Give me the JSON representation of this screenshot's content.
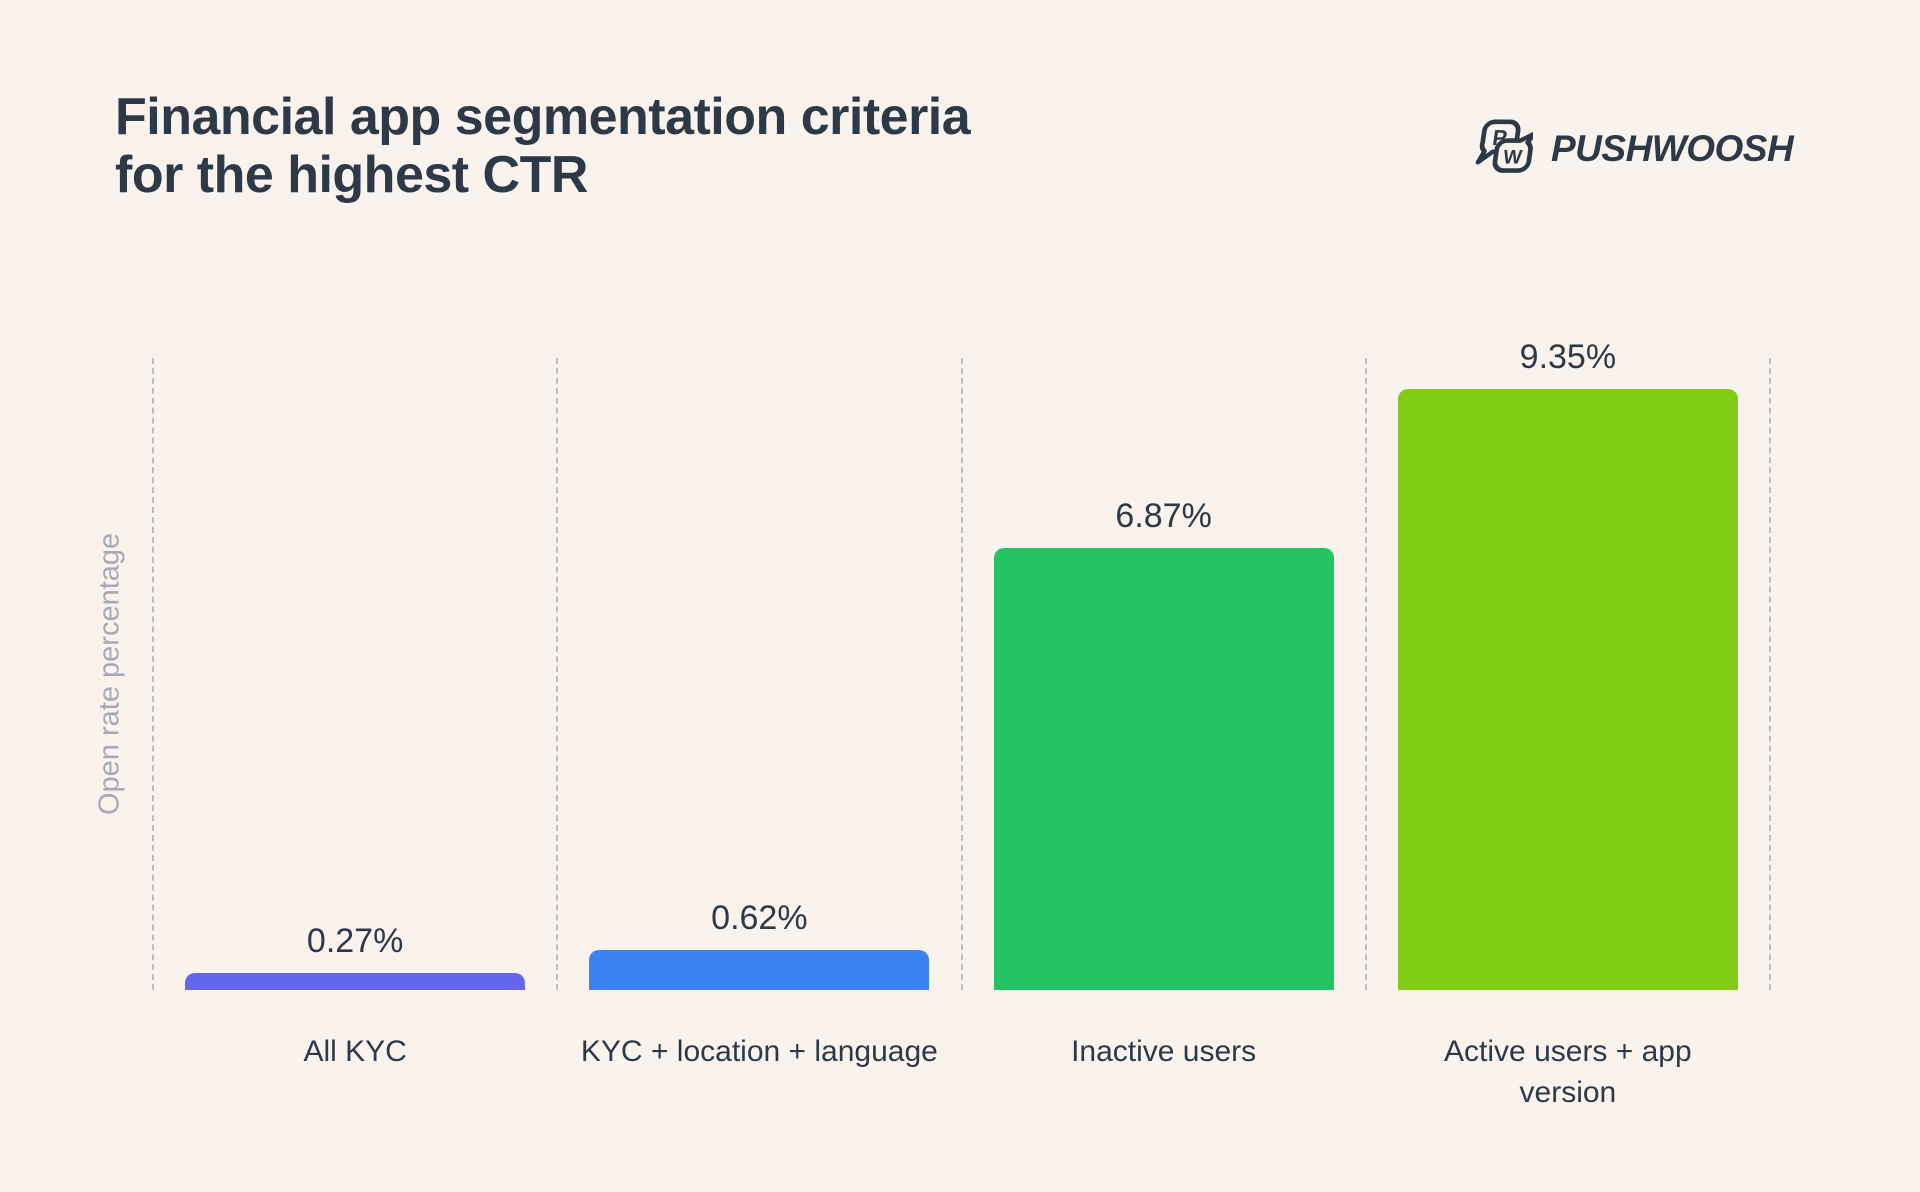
{
  "header": {
    "title_lines": [
      "Financial app segmentation criteria",
      "for the highest CTR"
    ],
    "brand": "PUSHWOOSH",
    "brand_icon": "pushwoosh-speech-bubbles-p-w"
  },
  "chart_data": {
    "type": "bar",
    "title": "Financial app segmentation criteria for the highest CTR",
    "ylabel": "Open rate percentage",
    "xlabel": "",
    "categories": [
      "All KYC",
      "KYC + location + language",
      "Inactive users",
      "Active users + app\nversion"
    ],
    "values": [
      0.27,
      0.62,
      6.87,
      9.35
    ],
    "value_labels": [
      "0.27%",
      "0.62%",
      "6.87%",
      "9.35%"
    ],
    "bar_colors": [
      "#6466EF",
      "#3D82F2",
      "#23C363",
      "#80CC16"
    ],
    "ylim": [
      0,
      9.35
    ],
    "grid": "vertical dashed separators between categories",
    "legend": "none"
  },
  "colors": {
    "background": "#F9F2ED",
    "text_dark": "#2E3948",
    "axis_label_gray": "#A6AAB5",
    "gridline_gray": "#B9BDC7"
  }
}
